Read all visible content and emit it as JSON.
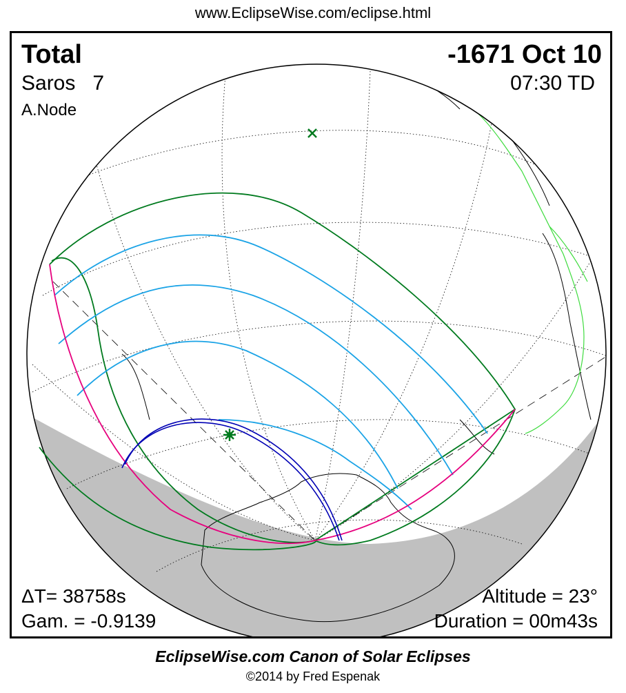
{
  "header_url": "www.EclipseWise.com/eclipse.html",
  "eclipse": {
    "type": "Total",
    "date": "-1671 Oct 10",
    "saros_label": "Saros",
    "saros_number": "7",
    "time": "07:30 TD",
    "node": "A.Node",
    "delta_t": "ΔT=  38758s",
    "gamma": "Gam. = -0.9139",
    "altitude": "Altitude = 23°",
    "duration": "Duration = 00m43s"
  },
  "footer": {
    "title": "EclipseWise.com Canon of Solar Eclipses",
    "copyright": "©2014 by Fred Espenak"
  },
  "colors": {
    "night_shade": "#c0c0c0",
    "penumbra_limits": "#007a1e",
    "penumbra_contours": "#1aa3e6",
    "path_of_totality": "#0000b4",
    "rise_set_curve": "#e6007e",
    "political_borders": "#3ddb3d",
    "coastlines": "#000000",
    "greatest_eclipse_marker": "#007a1e"
  },
  "markers": {
    "greatest_eclipse_icon": "green-star",
    "subsolar_point_icon": "green-x"
  }
}
